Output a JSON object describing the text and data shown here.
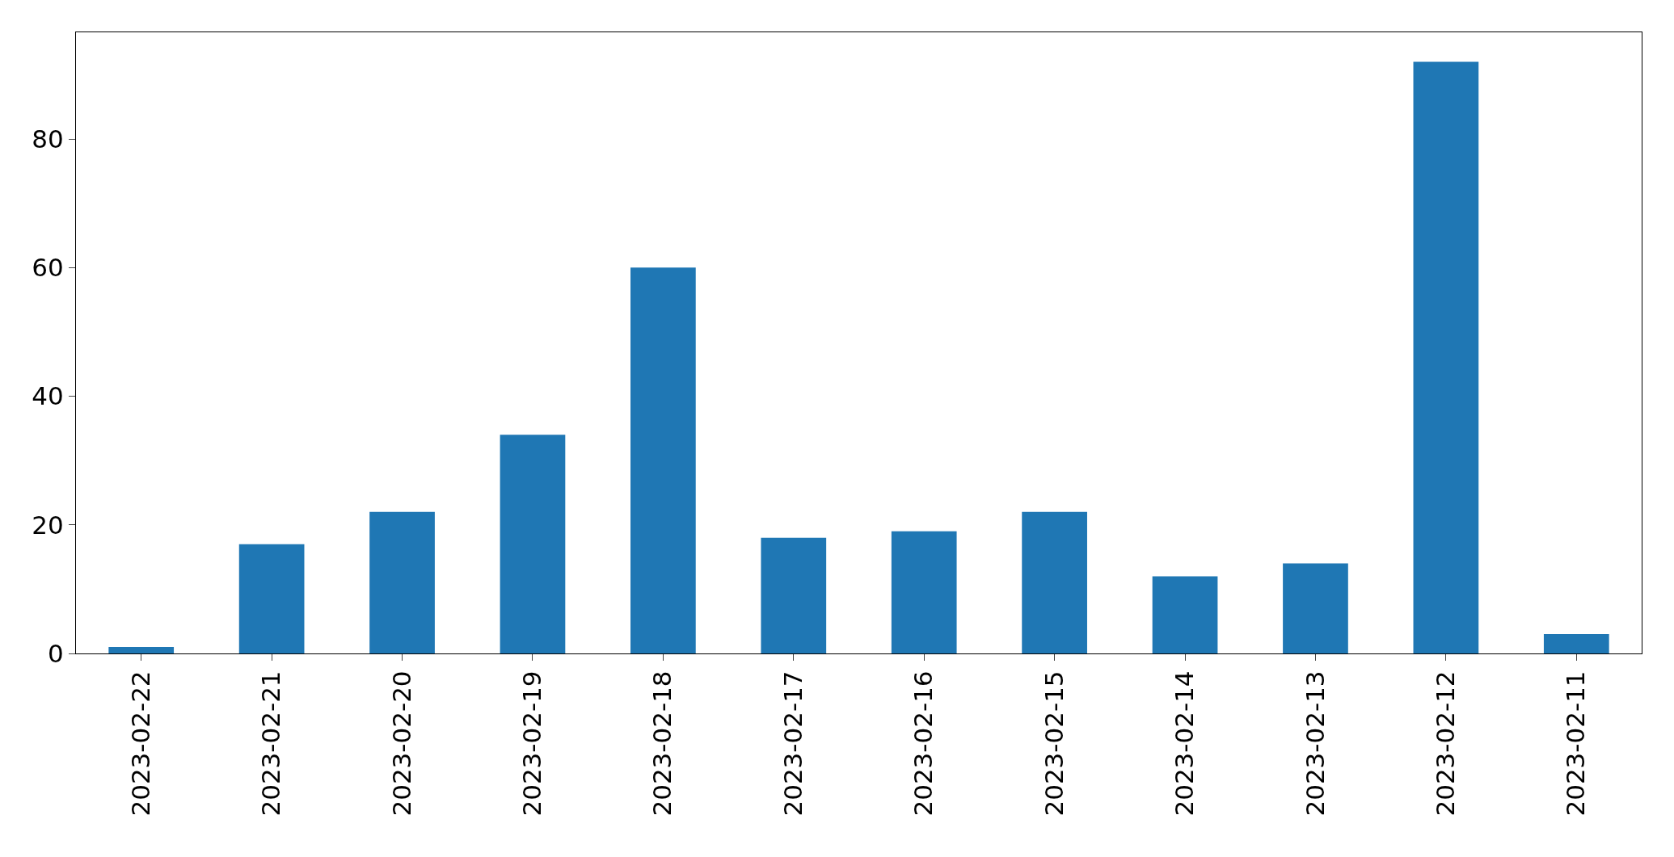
{
  "chart_data": {
    "type": "bar",
    "categories": [
      "2023-02-22",
      "2023-02-21",
      "2023-02-20",
      "2023-02-19",
      "2023-02-18",
      "2023-02-17",
      "2023-02-16",
      "2023-02-15",
      "2023-02-14",
      "2023-02-13",
      "2023-02-12",
      "2023-02-11"
    ],
    "values": [
      1,
      17,
      22,
      34,
      60,
      18,
      19,
      22,
      12,
      14,
      92,
      3
    ],
    "color": "#1f77b4",
    "ylim": [
      0,
      96.6
    ],
    "yticks": [
      0,
      20,
      40,
      60,
      80
    ]
  }
}
